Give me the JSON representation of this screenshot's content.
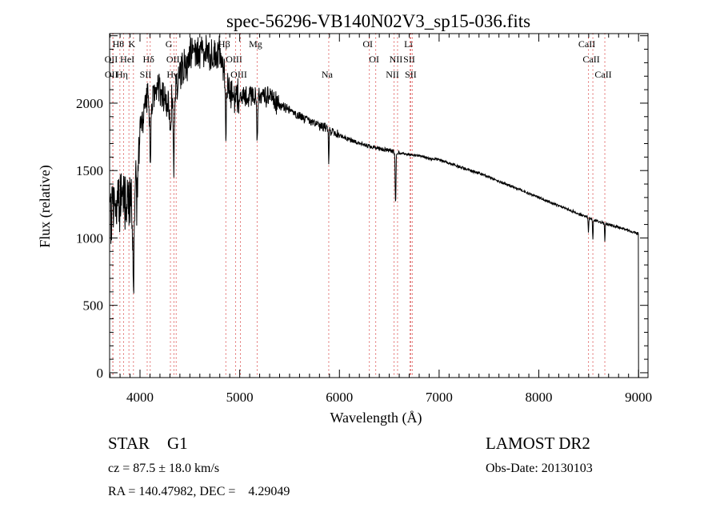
{
  "chart_data": {
    "type": "line",
    "title": "spec-56296-VB140N02V3_sp15-036.fits",
    "xlabel": "Wavelength (Å)",
    "ylabel": "Flux (relative)",
    "xlim": [
      3695,
      9095
    ],
    "ylim": [
      -36,
      2516
    ],
    "x_ticks": [
      4000,
      5000,
      6000,
      7000,
      8000,
      9000
    ],
    "y_ticks": [
      0,
      500,
      1000,
      1500,
      2000
    ],
    "x_minor_step": 100,
    "y_minor_step": 100,
    "grid": false,
    "line_color": "#000000",
    "marker_color": "#cc0000",
    "continuum": {
      "wavelength": [
        3700,
        3800,
        3900,
        3950,
        4000,
        4050,
        4150,
        4200,
        4300,
        4400,
        4500,
        4600,
        4700,
        4800,
        4900,
        5000,
        5100,
        5200,
        5300,
        5400,
        5500,
        5600,
        5700,
        5800,
        5900,
        6000,
        6100,
        6200,
        6300,
        6400,
        6500,
        6600,
        6700,
        6800,
        6900,
        7000,
        7200,
        7400,
        7600,
        7800,
        8000,
        8200,
        8400,
        8600,
        8800,
        9000
      ],
      "flux": [
        1200,
        1300,
        1250,
        1400,
        1800,
        2000,
        2050,
        2100,
        2000,
        2200,
        2350,
        2400,
        2350,
        2350,
        2100,
        2050,
        2050,
        2050,
        2050,
        1980,
        1950,
        1900,
        1870,
        1830,
        1800,
        1760,
        1730,
        1700,
        1680,
        1660,
        1650,
        1630,
        1620,
        1610,
        1590,
        1580,
        1530,
        1480,
        1420,
        1360,
        1300,
        1240,
        1180,
        1120,
        1080,
        1030
      ]
    },
    "absorption_lines": [
      {
        "name": "K",
        "wavelength": 3934,
        "depth": 700,
        "width": 6
      },
      {
        "name": "H",
        "wavelength": 3969,
        "depth": 450,
        "width": 5
      },
      {
        "name": "Hδ",
        "wavelength": 4102,
        "depth": 550,
        "width": 5
      },
      {
        "name": "G",
        "wavelength": 4305,
        "depth": 250,
        "width": 6
      },
      {
        "name": "Hγ",
        "wavelength": 4340,
        "depth": 600,
        "width": 5
      },
      {
        "name": "Hβ",
        "wavelength": 4861,
        "depth": 600,
        "width": 4
      },
      {
        "name": "Mg",
        "wavelength": 5175,
        "depth": 320,
        "width": 5
      },
      {
        "name": "Na",
        "wavelength": 5893,
        "depth": 250,
        "width": 3
      },
      {
        "name": "Hα",
        "wavelength": 6563,
        "depth": 380,
        "width": 4
      },
      {
        "name": "CaII",
        "wavelength": 8498,
        "depth": 110,
        "width": 3
      },
      {
        "name": "CaII",
        "wavelength": 8542,
        "depth": 150,
        "width": 3
      },
      {
        "name": "CaII",
        "wavelength": 8662,
        "depth": 130,
        "width": 3
      }
    ],
    "line_markers": [
      {
        "label": "Hθ",
        "wavelength": 3798,
        "row": 0
      },
      {
        "label": "K",
        "wavelength": 3934,
        "row": 0
      },
      {
        "label": "G",
        "wavelength": 4305,
        "row": 0
      },
      {
        "label": "Hβ",
        "wavelength": 4861,
        "row": 0
      },
      {
        "label": "Mg",
        "wavelength": 5175,
        "row": 0
      },
      {
        "label": "OI",
        "wavelength": 6300,
        "row": 0
      },
      {
        "label": "Li",
        "wavelength": 6708,
        "row": 0
      },
      {
        "label": "CaII",
        "wavelength": 8498,
        "row": 0
      },
      {
        "label": "OII",
        "wavelength": 3727,
        "row": 1
      },
      {
        "label": "HeI",
        "wavelength": 3889,
        "row": 1
      },
      {
        "label": "Hδ",
        "wavelength": 4102,
        "row": 1
      },
      {
        "label": "OIII",
        "wavelength": 4363,
        "row": 1
      },
      {
        "label": "OIII",
        "wavelength": 4959,
        "row": 1
      },
      {
        "label": "OI",
        "wavelength": 6364,
        "row": 1
      },
      {
        "label": "NII",
        "wavelength": 6583,
        "row": 1
      },
      {
        "label": "SII",
        "wavelength": 6716,
        "row": 1
      },
      {
        "label": "CaII",
        "wavelength": 8542,
        "row": 1
      },
      {
        "label": "OII",
        "wavelength": 3729,
        "row": 2
      },
      {
        "label": "Hη",
        "wavelength": 3835,
        "row": 2
      },
      {
        "label": "SII",
        "wavelength": 4072,
        "row": 2
      },
      {
        "label": "Hγ",
        "wavelength": 4340,
        "row": 2
      },
      {
        "label": "OIII",
        "wavelength": 5007,
        "row": 2
      },
      {
        "label": "Na",
        "wavelength": 5893,
        "row": 2
      },
      {
        "label": "NII",
        "wavelength": 6548,
        "row": 2
      },
      {
        "label": "SII",
        "wavelength": 6731,
        "row": 2
      },
      {
        "label": "CaII",
        "wavelength": 8662,
        "row": 2
      }
    ]
  },
  "info": {
    "class": "STAR",
    "subclass": "G1",
    "survey": "LAMOST DR2",
    "cz": "cz = 87.5 ± 18.0 km/s",
    "obs_date": "Obs-Date: 20130103",
    "coords": "RA = 140.47982, DEC =    4.29049"
  }
}
